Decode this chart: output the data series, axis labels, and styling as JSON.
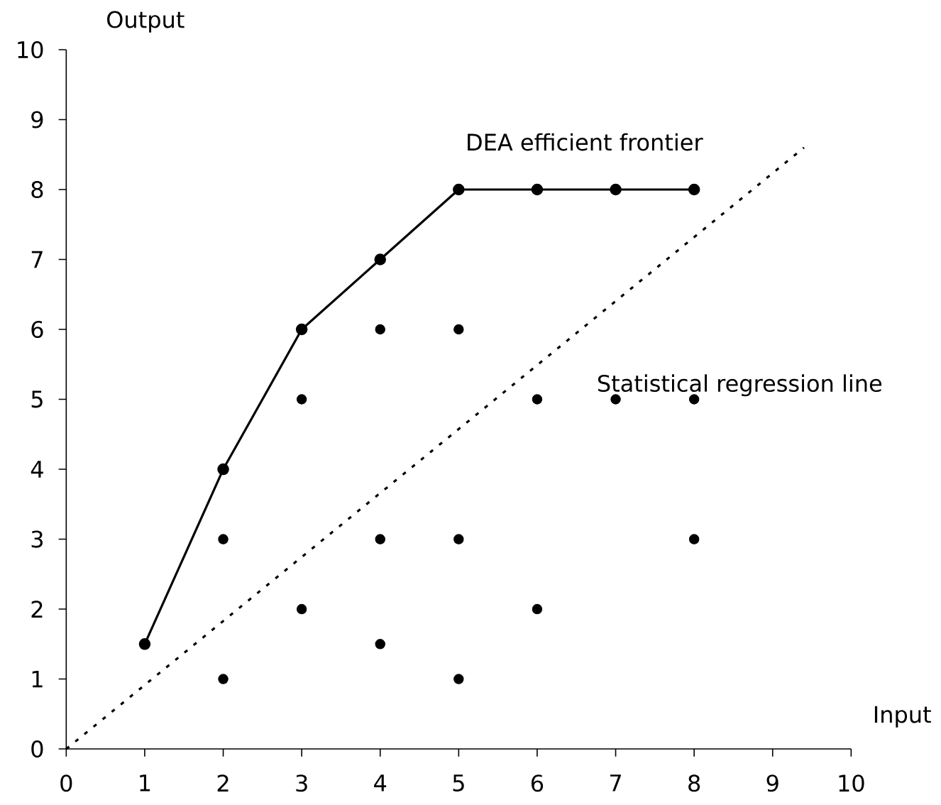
{
  "chart_data": {
    "type": "scatter",
    "xlabel": "Input",
    "ylabel": "Output",
    "xlim": [
      0,
      10
    ],
    "ylim": [
      0,
      10
    ],
    "xticks": [
      0,
      1,
      2,
      3,
      4,
      5,
      6,
      7,
      8,
      9,
      10
    ],
    "yticks": [
      0,
      1,
      2,
      3,
      4,
      5,
      6,
      7,
      8,
      9,
      10
    ],
    "series": [
      {
        "type": "line",
        "color": "#000000",
        "marker": "circle",
        "line_style": "solid",
        "x": [
          1,
          2,
          3,
          4,
          5,
          6,
          7,
          8
        ],
        "values": [
          1.5,
          4,
          6,
          7,
          8,
          8,
          8,
          8
        ]
      },
      {
        "color": "#000000",
        "marker": "circle",
        "x": [
          2,
          2,
          3,
          3,
          4,
          4,
          4,
          5,
          5,
          5,
          6,
          6,
          7,
          8,
          8
        ],
        "values": [
          1,
          3,
          2,
          5,
          1.5,
          3,
          6,
          1,
          3,
          6,
          2,
          5,
          5,
          3,
          5
        ]
      },
      {
        "type": "line",
        "color": "#000000",
        "marker": "none",
        "line_style": "dotted",
        "x": [
          0,
          9.4
        ],
        "values": [
          0,
          8.6
        ]
      }
    ],
    "annotations": [
      "DEA efficient frontier",
      "Statistical regression line"
    ]
  }
}
